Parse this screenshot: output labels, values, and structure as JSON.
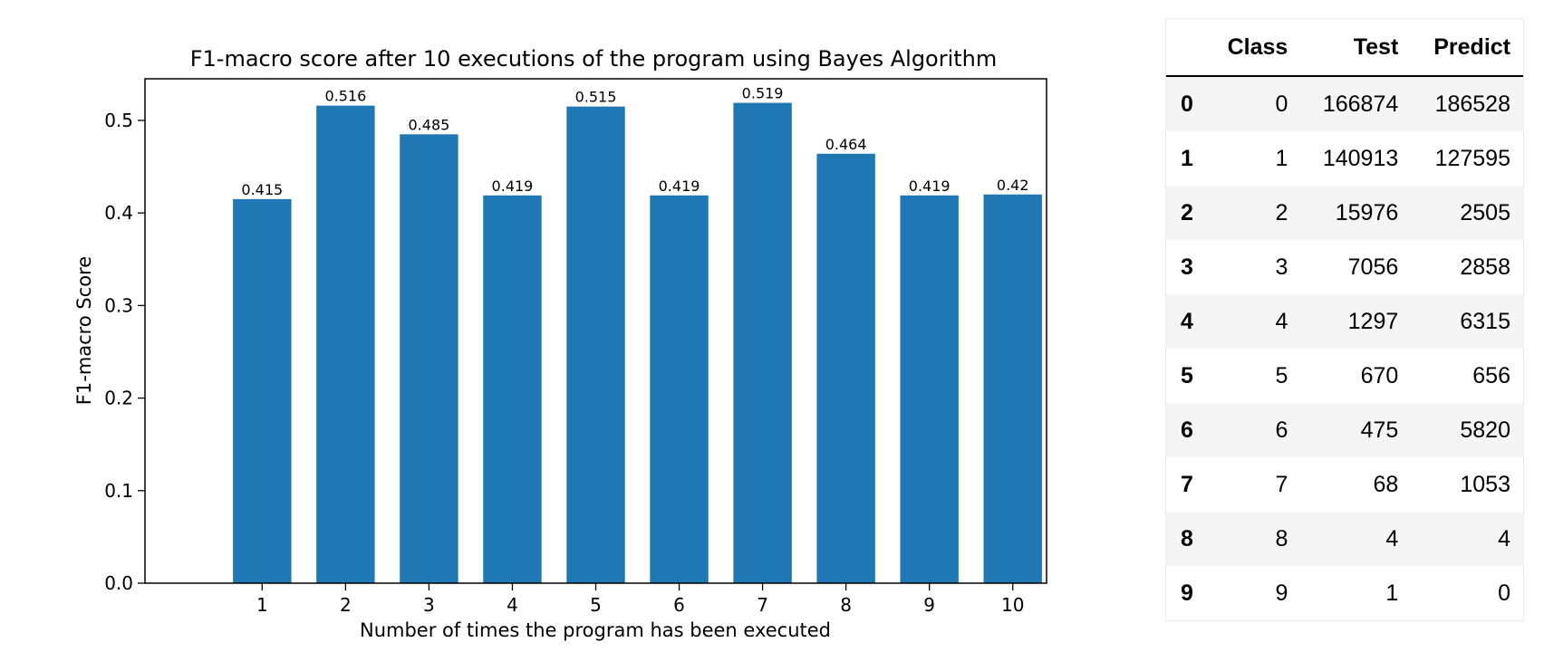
{
  "chart_data": {
    "type": "bar",
    "title": "F1-macro score after 10 executions of the program using Bayes Algorithm",
    "xlabel": "Number of times the program has been executed",
    "ylabel": "F1-macro Score",
    "categories": [
      "1",
      "2",
      "3",
      "4",
      "5",
      "6",
      "7",
      "8",
      "9",
      "10"
    ],
    "values": [
      0.415,
      0.516,
      0.485,
      0.419,
      0.515,
      0.419,
      0.519,
      0.464,
      0.419,
      0.42
    ],
    "data_labels": [
      "0.415",
      "0.516",
      "0.485",
      "0.419",
      "0.515",
      "0.419",
      "0.519",
      "0.464",
      "0.419",
      "0.42"
    ],
    "yticks": [
      0.0,
      0.1,
      0.2,
      0.3,
      0.4,
      0.5
    ],
    "ytick_labels": [
      "0.0",
      "0.1",
      "0.2",
      "0.3",
      "0.4",
      "0.5"
    ],
    "ylim": [
      0,
      0.545
    ],
    "grid": false,
    "bar_color": "#1f77b4"
  },
  "table": {
    "headers": [
      "",
      "Class",
      "Test",
      "Predict"
    ],
    "rows": [
      [
        "0",
        "0",
        "166874",
        "186528"
      ],
      [
        "1",
        "1",
        "140913",
        "127595"
      ],
      [
        "2",
        "2",
        "15976",
        "2505"
      ],
      [
        "3",
        "3",
        "7056",
        "2858"
      ],
      [
        "4",
        "4",
        "1297",
        "6315"
      ],
      [
        "5",
        "5",
        "670",
        "656"
      ],
      [
        "6",
        "6",
        "475",
        "5820"
      ],
      [
        "7",
        "7",
        "68",
        "1053"
      ],
      [
        "8",
        "8",
        "4",
        "4"
      ],
      [
        "9",
        "9",
        "1",
        "0"
      ]
    ]
  }
}
